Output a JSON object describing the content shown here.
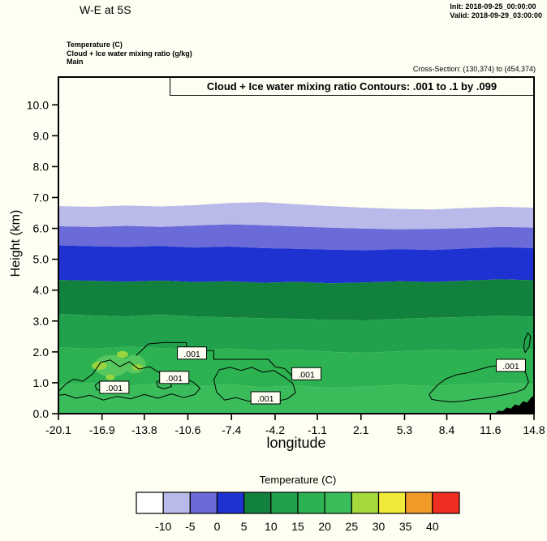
{
  "header": {
    "title": "W-E at 5S",
    "init_line": "Init: 2018-09-25_00:00:00",
    "valid_line": "Valid: 2018-09-29_03:00:00",
    "field_line1": "Temperature  (C)",
    "field_line2": "Cloud + Ice water mixing ratio   (g/kg)",
    "field_line3": "Main",
    "cross_section": "Cross-Section: (130,374) to (454,374)"
  },
  "plot": {
    "banner": "Cloud + Ice water mixing ratio Contours: .001 to .1 by .099",
    "xlabel": "longitude",
    "ylabel": "Height (km)"
  },
  "colorbar": {
    "title": "Temperature  (C)",
    "tick_labels": [
      "-10",
      "-5",
      "0",
      "5",
      "10",
      "15",
      "20",
      "25",
      "30",
      "35",
      "40"
    ],
    "colors": [
      "#ffffff",
      "#b9b9ea",
      "#6a6ad8",
      "#1e32d2",
      "#12813d",
      "#21a14b",
      "#2db252",
      "#3abc5b",
      "#a6d93c",
      "#f2ea3a",
      "#f29a28",
      "#ee2e20"
    ]
  },
  "chart_data": {
    "type": "heatmap",
    "title": "Cloud + Ice water mixing ratio Contours: .001 to .1 by .099",
    "xlabel": "longitude",
    "ylabel": "Height (km)",
    "xlim": [
      -20.1,
      14.8
    ],
    "ylim": [
      0,
      10.9
    ],
    "x_ticks": [
      -20.1,
      -16.9,
      -13.8,
      -10.6,
      -7.4,
      -4.2,
      -1.1,
      2.1,
      5.3,
      8.4,
      11.6,
      14.8
    ],
    "y_ticks": [
      0,
      1,
      2,
      3,
      4,
      5,
      6,
      7,
      8,
      9,
      10
    ],
    "background_temp_label": "below -10 C (white)",
    "x_samples": [
      -20.1,
      -17.6,
      -15.1,
      -12.6,
      -10.1,
      -7.6,
      -5.1,
      -2.6,
      -0.1,
      2.4,
      4.9,
      7.4,
      9.9,
      12.4,
      14.8
    ],
    "isotherm_bands": [
      {
        "iso_c": -10,
        "band_label": "-10 to -5 C",
        "color": "#b9b9ea",
        "heights": [
          6.72,
          6.7,
          6.74,
          6.71,
          6.75,
          6.82,
          6.85,
          6.78,
          6.72,
          6.67,
          6.63,
          6.61,
          6.66,
          6.7,
          6.67
        ]
      },
      {
        "iso_c": -5,
        "band_label": "-5 to 0 C",
        "color": "#6a6ad8",
        "heights": [
          6.07,
          6.04,
          6.08,
          6.05,
          6.09,
          6.13,
          6.1,
          6.06,
          6.02,
          5.99,
          5.97,
          5.98,
          6.01,
          6.05,
          6.02
        ]
      },
      {
        "iso_c": 0,
        "band_label": "0 to 5 C",
        "color": "#1e32d2",
        "heights": [
          5.45,
          5.42,
          5.4,
          5.43,
          5.38,
          5.41,
          5.36,
          5.34,
          5.31,
          5.29,
          5.33,
          5.3,
          5.35,
          5.39,
          5.36
        ]
      },
      {
        "iso_c": 5,
        "band_label": "5 to 10 C",
        "color": "#12813d",
        "heights": [
          4.33,
          4.3,
          4.27,
          4.31,
          4.26,
          4.29,
          4.24,
          4.27,
          4.22,
          4.25,
          4.29,
          4.26,
          4.31,
          4.35,
          4.32
        ]
      },
      {
        "iso_c": 10,
        "band_label": "10 to 15 C",
        "color": "#21a14b",
        "heights": [
          3.23,
          3.18,
          3.15,
          3.21,
          3.14,
          3.12,
          3.09,
          3.07,
          3.03,
          3.02,
          3.07,
          3.11,
          3.13,
          3.17,
          3.14
        ]
      },
      {
        "iso_c": 15,
        "band_label": "15 to 20 C",
        "color": "#2db252",
        "heights": [
          2.15,
          2.1,
          2.17,
          2.12,
          2.07,
          2.11,
          2.04,
          2.07,
          2.0,
          1.97,
          2.02,
          2.07,
          2.04,
          2.11,
          2.08
        ]
      },
      {
        "iso_c": 20,
        "band_label": "20 to 25 C",
        "color": "#3abc5b",
        "heights": [
          0.93,
          0.99,
          0.9,
          0.97,
          0.87,
          0.95,
          0.85,
          0.91,
          0.83,
          0.88,
          0.93,
          0.89,
          0.95,
          0.99,
          0.97
        ]
      }
    ],
    "light_patches": {
      "color": "#55c75e",
      "ellipses": [
        {
          "cx": -16.2,
          "cy": 1.55,
          "rx": 1.3,
          "ry": 0.35
        },
        {
          "cx": -14.5,
          "cy": 1.6,
          "rx": 0.8,
          "ry": 0.3
        }
      ]
    },
    "warm_patches": {
      "color": "#9ad43e",
      "ellipses": [
        {
          "cx": -17.1,
          "cy": 1.55,
          "rx": 0.55,
          "ry": 0.13
        },
        {
          "cx": -15.4,
          "cy": 1.92,
          "rx": 0.42,
          "ry": 0.11
        },
        {
          "cx": -14.3,
          "cy": 1.5,
          "rx": 0.38,
          "ry": 0.1
        },
        {
          "cx": -16.3,
          "cy": 1.18,
          "rx": 0.33,
          "ry": 0.09
        }
      ]
    },
    "cloud_contour_level": 0.001,
    "contour_label": ".001",
    "cloud_contours": [
      {
        "closed": true,
        "points": [
          [
            -20.1,
            0.72
          ],
          [
            -19.5,
            0.98
          ],
          [
            -19.0,
            1.12
          ],
          [
            -18.3,
            1.05
          ],
          [
            -17.6,
            1.28
          ],
          [
            -17.0,
            1.66
          ],
          [
            -16.3,
            1.74
          ],
          [
            -15.6,
            1.52
          ],
          [
            -14.9,
            1.68
          ],
          [
            -14.2,
            1.44
          ],
          [
            -13.4,
            1.52
          ],
          [
            -12.6,
            1.3
          ],
          [
            -11.8,
            1.36
          ],
          [
            -11.0,
            1.18
          ],
          [
            -10.2,
            1.02
          ],
          [
            -9.7,
            0.82
          ],
          [
            -10.1,
            0.62
          ],
          [
            -10.9,
            0.52
          ],
          [
            -11.8,
            0.64
          ],
          [
            -12.8,
            0.5
          ],
          [
            -13.8,
            0.62
          ],
          [
            -14.8,
            0.48
          ],
          [
            -15.8,
            0.56
          ],
          [
            -16.8,
            0.44
          ],
          [
            -17.8,
            0.6
          ],
          [
            -18.8,
            0.5
          ],
          [
            -19.6,
            0.62
          ],
          [
            -20.1,
            0.6
          ]
        ]
      },
      {
        "closed": false,
        "points": [
          [
            -14.4,
            1.88
          ],
          [
            -13.5,
            2.26
          ],
          [
            -12.4,
            2.3
          ],
          [
            -10.7,
            2.3
          ],
          [
            -10.7,
            2.04
          ],
          [
            -8.7,
            2.04
          ],
          [
            -8.7,
            1.76
          ],
          [
            -5.9,
            1.76
          ],
          [
            -4.7,
            1.76
          ],
          [
            -4.2,
            1.52
          ],
          [
            -3.5,
            1.46
          ],
          [
            -3.0,
            1.24
          ]
        ]
      },
      {
        "closed": true,
        "points": [
          [
            -8.3,
            1.42
          ],
          [
            -7.5,
            1.5
          ],
          [
            -6.7,
            1.4
          ],
          [
            -5.9,
            1.5
          ],
          [
            -5.1,
            1.34
          ],
          [
            -4.3,
            1.4
          ],
          [
            -3.5,
            1.18
          ],
          [
            -2.9,
            0.98
          ],
          [
            -2.7,
            0.68
          ],
          [
            -3.3,
            0.48
          ],
          [
            -4.1,
            0.4
          ],
          [
            -5.1,
            0.5
          ],
          [
            -6.1,
            0.4
          ],
          [
            -7.1,
            0.52
          ],
          [
            -7.9,
            0.44
          ],
          [
            -8.5,
            0.7
          ],
          [
            -8.7,
            1.1
          ]
        ]
      },
      {
        "closed": true,
        "points": [
          [
            7.1,
            0.62
          ],
          [
            7.7,
            0.92
          ],
          [
            8.3,
            1.12
          ],
          [
            9.1,
            1.26
          ],
          [
            9.9,
            1.32
          ],
          [
            10.7,
            1.42
          ],
          [
            11.5,
            1.52
          ],
          [
            12.3,
            1.56
          ],
          [
            13.1,
            1.62
          ],
          [
            13.7,
            1.52
          ],
          [
            14.2,
            1.32
          ],
          [
            14.4,
            1.02
          ],
          [
            14.1,
            0.8
          ],
          [
            13.5,
            0.7
          ],
          [
            12.7,
            0.62
          ],
          [
            11.9,
            0.56
          ],
          [
            11.1,
            0.5
          ],
          [
            10.3,
            0.46
          ],
          [
            9.5,
            0.4
          ],
          [
            8.7,
            0.38
          ],
          [
            7.9,
            0.42
          ],
          [
            7.3,
            0.46
          ]
        ]
      },
      {
        "closed": true,
        "points": [
          [
            -17.4,
            0.92
          ],
          [
            -17.0,
            1.06
          ],
          [
            -16.5,
            0.96
          ],
          [
            -16.3,
            0.8
          ],
          [
            -16.8,
            0.72
          ],
          [
            -17.3,
            0.78
          ]
        ]
      },
      {
        "closed": true,
        "points": [
          [
            -12.9,
            1.02
          ],
          [
            -12.4,
            1.14
          ],
          [
            -11.9,
            1.04
          ],
          [
            -11.8,
            0.88
          ],
          [
            -12.4,
            0.8
          ],
          [
            -12.8,
            0.88
          ]
        ]
      },
      {
        "closed": true,
        "points": [
          [
            14.15,
            1.98
          ],
          [
            14.45,
            2.18
          ],
          [
            14.55,
            2.5
          ],
          [
            14.35,
            2.62
          ],
          [
            14.12,
            2.4
          ],
          [
            14.05,
            2.14
          ]
        ]
      }
    ],
    "contour_labels": [
      {
        "x": -16.0,
        "h": 0.84
      },
      {
        "x": -11.6,
        "h": 1.16
      },
      {
        "x": -10.3,
        "h": 1.95
      },
      {
        "x": -1.9,
        "h": 1.28
      },
      {
        "x": -4.9,
        "h": 0.5
      },
      {
        "x": 13.1,
        "h": 1.55
      }
    ],
    "terrain": [
      [
        11.9,
        0.0
      ],
      [
        12.2,
        0.1
      ],
      [
        12.5,
        0.08
      ],
      [
        12.8,
        0.2
      ],
      [
        13.1,
        0.16
      ],
      [
        13.4,
        0.3
      ],
      [
        13.7,
        0.26
      ],
      [
        14.0,
        0.4
      ],
      [
        14.3,
        0.36
      ],
      [
        14.55,
        0.5
      ],
      [
        14.8,
        0.6
      ],
      [
        14.8,
        0.0
      ]
    ]
  }
}
